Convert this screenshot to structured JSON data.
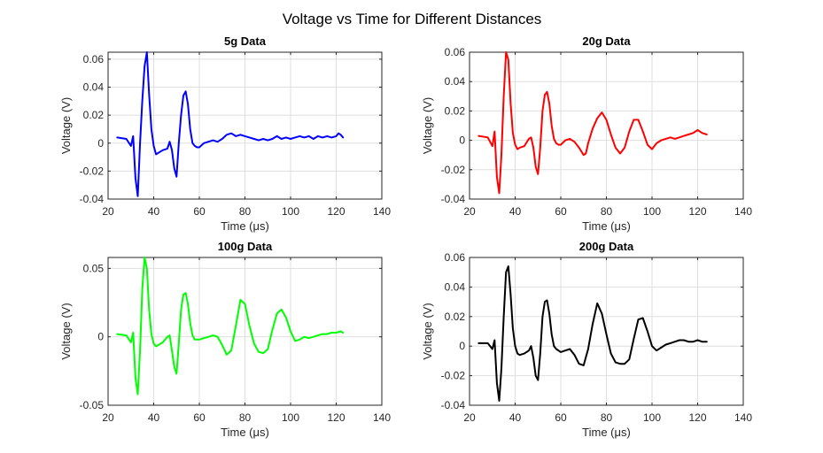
{
  "figure": {
    "title": "Voltage vs Time for Different Distances"
  },
  "chart_data": [
    {
      "type": "line",
      "title": "5g Data",
      "xlabel": "Time (μs)",
      "ylabel": "Voltage (V)",
      "xlim": [
        20,
        140
      ],
      "ylim": [
        -0.04,
        0.065
      ],
      "xticks": [
        20,
        40,
        60,
        80,
        100,
        120,
        140
      ],
      "yticks": [
        -0.04,
        -0.02,
        0,
        0.02,
        0.04,
        0.06
      ],
      "ytick_labels": [
        "-0.04",
        "-0.02",
        "0",
        "0.02",
        "0.04",
        "0.06"
      ],
      "grid": true,
      "color": "#0000ff",
      "series": [
        {
          "x": [
            24,
            28,
            30,
            31,
            32,
            33,
            34,
            35,
            36,
            37,
            38,
            39,
            40,
            41,
            42,
            44,
            46,
            47,
            48,
            49,
            50,
            51,
            52,
            53,
            54,
            55,
            56,
            57,
            58,
            59,
            60,
            62,
            64,
            66,
            68,
            70,
            72,
            74,
            76,
            78,
            80,
            82,
            84,
            86,
            88,
            90,
            92,
            94,
            96,
            98,
            100,
            102,
            104,
            106,
            108,
            110,
            112,
            114,
            116,
            118,
            120,
            121,
            122,
            123
          ],
          "y": [
            0.004,
            0.003,
            -0.002,
            0.005,
            -0.025,
            -0.038,
            0.0,
            0.03,
            0.055,
            0.065,
            0.035,
            0.01,
            -0.002,
            -0.008,
            -0.007,
            -0.005,
            -0.004,
            0.001,
            -0.005,
            -0.018,
            -0.024,
            0.0,
            0.02,
            0.034,
            0.037,
            0.028,
            0.01,
            0.0,
            -0.002,
            -0.003,
            -0.003,
            0.0,
            0.001,
            0.002,
            0.001,
            0.003,
            0.006,
            0.007,
            0.005,
            0.006,
            0.005,
            0.004,
            0.003,
            0.002,
            0.003,
            0.002,
            0.003,
            0.005,
            0.003,
            0.004,
            0.003,
            0.004,
            0.005,
            0.004,
            0.005,
            0.003,
            0.005,
            0.004,
            0.005,
            0.004,
            0.005,
            0.007,
            0.006,
            0.004
          ]
        }
      ]
    },
    {
      "type": "line",
      "title": "20g Data",
      "xlabel": "Time (μs)",
      "ylabel": "Voltage (V)",
      "xlim": [
        20,
        140
      ],
      "ylim": [
        -0.04,
        0.06
      ],
      "xticks": [
        20,
        40,
        60,
        80,
        100,
        120,
        140
      ],
      "yticks": [
        -0.04,
        -0.02,
        0,
        0.02,
        0.04,
        0.06
      ],
      "ytick_labels": [
        "-0.04",
        "-0.02",
        "0",
        "0.02",
        "0.04",
        "0.06"
      ],
      "grid": true,
      "color": "#ff0000",
      "series": [
        {
          "x": [
            24,
            28,
            30,
            31,
            32,
            33,
            34,
            35,
            36,
            37,
            38,
            39,
            40,
            41,
            42,
            44,
            46,
            47,
            48,
            49,
            50,
            51,
            52,
            53,
            54,
            55,
            56,
            57,
            58,
            59,
            60,
            62,
            64,
            66,
            68,
            70,
            71,
            72,
            74,
            76,
            78,
            80,
            82,
            84,
            86,
            88,
            90,
            92,
            94,
            96,
            98,
            100,
            102,
            104,
            106,
            108,
            110,
            112,
            114,
            116,
            118,
            120,
            122,
            124
          ],
          "y": [
            0.003,
            0.002,
            -0.004,
            0.006,
            -0.025,
            -0.036,
            -0.01,
            0.03,
            0.06,
            0.055,
            0.025,
            0.005,
            -0.003,
            -0.006,
            -0.005,
            -0.004,
            0.001,
            0.002,
            -0.005,
            -0.018,
            -0.023,
            -0.005,
            0.02,
            0.031,
            0.033,
            0.025,
            0.01,
            0.001,
            -0.002,
            -0.003,
            -0.003,
            0.0,
            0.001,
            -0.001,
            -0.005,
            -0.01,
            -0.009,
            -0.002,
            0.008,
            0.015,
            0.019,
            0.014,
            0.004,
            -0.005,
            -0.009,
            -0.005,
            0.006,
            0.014,
            0.014,
            0.006,
            -0.003,
            -0.006,
            -0.002,
            0.0,
            0.001,
            0.002,
            0.001,
            0.002,
            0.003,
            0.004,
            0.005,
            0.007,
            0.005,
            0.004
          ]
        }
      ]
    },
    {
      "type": "line",
      "title": "100g Data",
      "xlabel": "Time (μs)",
      "ylabel": "Voltage (V)",
      "xlim": [
        20,
        140
      ],
      "ylim": [
        -0.05,
        0.058
      ],
      "xticks": [
        20,
        40,
        60,
        80,
        100,
        120,
        140
      ],
      "yticks": [
        -0.05,
        0,
        0.05
      ],
      "ytick_labels": [
        "-0.05",
        "0",
        "0.05"
      ],
      "grid": true,
      "color": "#00ff00",
      "series": [
        {
          "x": [
            24,
            28,
            30,
            31,
            32,
            33,
            34,
            35,
            36,
            37,
            38,
            39,
            40,
            41,
            42,
            44,
            46,
            47,
            48,
            49,
            50,
            51,
            52,
            53,
            54,
            55,
            56,
            57,
            58,
            60,
            62,
            64,
            66,
            68,
            70,
            72,
            74,
            76,
            78,
            80,
            82,
            84,
            86,
            88,
            90,
            92,
            94,
            96,
            98,
            100,
            102,
            104,
            106,
            108,
            110,
            112,
            114,
            116,
            118,
            120,
            122,
            123
          ],
          "y": [
            0.002,
            0.001,
            -0.004,
            0.003,
            -0.03,
            -0.042,
            -0.01,
            0.035,
            0.058,
            0.05,
            0.02,
            0.002,
            -0.005,
            -0.007,
            -0.006,
            -0.004,
            0.0,
            0.001,
            -0.01,
            -0.022,
            -0.027,
            -0.005,
            0.02,
            0.031,
            0.032,
            0.024,
            0.01,
            0.001,
            -0.002,
            -0.002,
            -0.001,
            0.0,
            0.001,
            0.0,
            -0.006,
            -0.013,
            -0.01,
            0.008,
            0.027,
            0.024,
            0.008,
            -0.005,
            -0.011,
            -0.012,
            -0.009,
            0.005,
            0.017,
            0.02,
            0.014,
            0.004,
            -0.003,
            -0.002,
            0.0,
            -0.001,
            0.0,
            0.001,
            0.002,
            0.002,
            0.003,
            0.003,
            0.004,
            0.003
          ]
        }
      ]
    },
    {
      "type": "line",
      "title": "200g Data",
      "xlabel": "Time (μs)",
      "ylabel": "Voltage (V)",
      "xlim": [
        20,
        140
      ],
      "ylim": [
        -0.04,
        0.06
      ],
      "xticks": [
        20,
        40,
        60,
        80,
        100,
        120,
        140
      ],
      "yticks": [
        -0.04,
        -0.02,
        0,
        0.02,
        0.04,
        0.06
      ],
      "ytick_labels": [
        "-0.04",
        "-0.02",
        "0",
        "0.02",
        "0.04",
        "0.06"
      ],
      "grid": true,
      "color": "#000000",
      "series": [
        {
          "x": [
            24,
            28,
            30,
            31,
            32,
            33,
            34,
            35,
            36,
            37,
            38,
            39,
            40,
            41,
            42,
            44,
            46,
            47,
            48,
            49,
            50,
            51,
            52,
            53,
            54,
            55,
            56,
            57,
            58,
            60,
            62,
            64,
            66,
            68,
            70,
            72,
            74,
            76,
            78,
            80,
            82,
            84,
            86,
            88,
            90,
            92,
            94,
            96,
            98,
            100,
            102,
            104,
            106,
            108,
            110,
            112,
            114,
            116,
            118,
            120,
            122,
            124
          ],
          "y": [
            0.002,
            0.002,
            -0.002,
            0.004,
            -0.025,
            -0.037,
            -0.015,
            0.02,
            0.05,
            0.054,
            0.035,
            0.012,
            0.0,
            -0.005,
            -0.006,
            -0.005,
            -0.003,
            0.0,
            -0.008,
            -0.02,
            -0.023,
            -0.005,
            0.02,
            0.03,
            0.031,
            0.022,
            0.008,
            0.0,
            -0.002,
            -0.004,
            -0.003,
            -0.002,
            -0.006,
            -0.012,
            -0.013,
            -0.002,
            0.015,
            0.029,
            0.022,
            0.008,
            -0.005,
            -0.011,
            -0.012,
            -0.012,
            -0.009,
            0.005,
            0.018,
            0.019,
            0.01,
            0.0,
            -0.003,
            -0.001,
            0.001,
            0.002,
            0.003,
            0.004,
            0.004,
            0.003,
            0.003,
            0.004,
            0.003,
            0.003
          ]
        }
      ]
    }
  ]
}
